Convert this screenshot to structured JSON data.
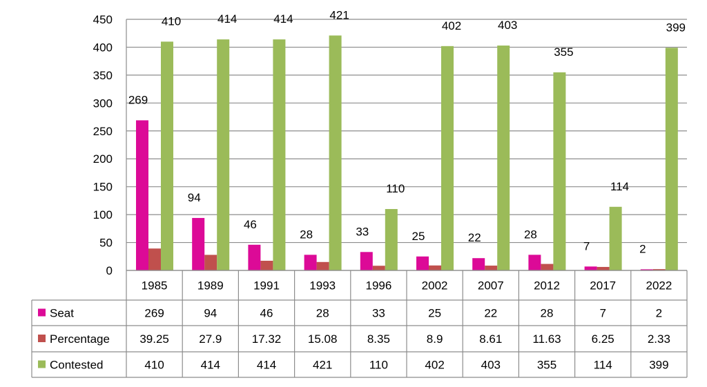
{
  "chart_data": {
    "type": "bar",
    "title": "",
    "xlabel": "",
    "ylabel": "",
    "ylim": [
      0,
      450
    ],
    "yticks": [
      0,
      50,
      100,
      150,
      200,
      250,
      300,
      350,
      400,
      450
    ],
    "grid": true,
    "legend_placement": "data-table-left",
    "categories": [
      "1985",
      "1989",
      "1991",
      "1993",
      "1996",
      "2002",
      "2007",
      "2012",
      "2017",
      "2022"
    ],
    "series": [
      {
        "name": "Seat",
        "color": "#DC0A97",
        "values": [
          269,
          94,
          46,
          28,
          33,
          25,
          22,
          28,
          7,
          2
        ],
        "data_labels": true
      },
      {
        "name": "Percentage",
        "color": "#C0504D",
        "values": [
          39.25,
          27.9,
          17.32,
          15.08,
          8.35,
          8.9,
          8.61,
          11.63,
          6.25,
          2.33
        ],
        "data_labels": false
      },
      {
        "name": "Contested",
        "color": "#9BBB59",
        "values": [
          410,
          414,
          414,
          421,
          110,
          402,
          403,
          355,
          114,
          399
        ],
        "data_labels": true
      }
    ]
  }
}
